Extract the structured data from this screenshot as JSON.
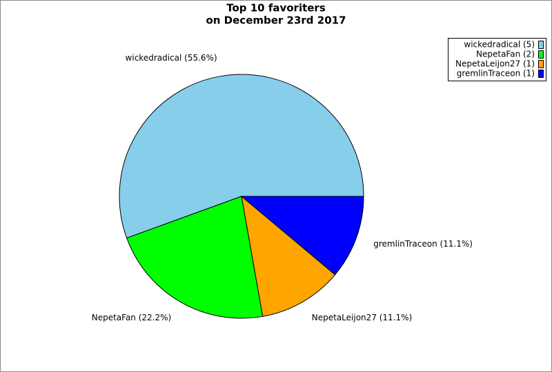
{
  "chart_data": {
    "type": "pie",
    "title": [
      "Top 10 favoriters",
      "on December 23rd 2017"
    ],
    "values": [
      5,
      2,
      1,
      1
    ],
    "slice_labels": [
      "wickedradical (55.6%)",
      "NepetaFan (22.2%)",
      "NepetaLeijon27 (11.1%)",
      "gremlinTraceon (11.1%)"
    ],
    "legend_labels": [
      "wickedradical (5)",
      "NepetaFan (2)",
      "NepetaLeijon27 (1)",
      "gremlinTraceon (1)"
    ],
    "colors": [
      "#87ceeb",
      "#00ff00",
      "#ffa500",
      "#0000ff"
    ],
    "legend_position": "upper right"
  }
}
